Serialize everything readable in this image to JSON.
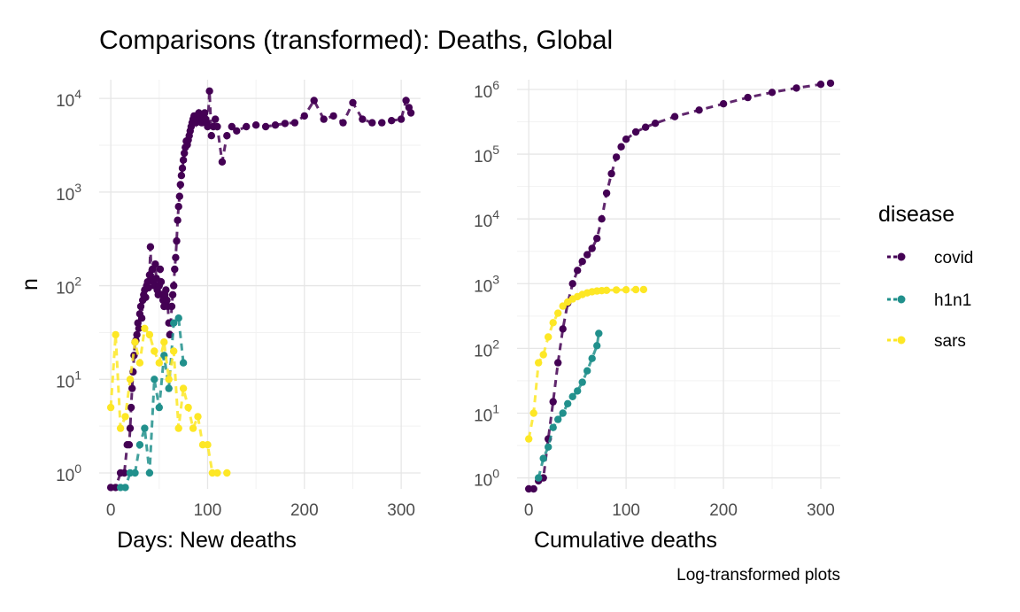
{
  "chart_data": [
    {
      "type": "scatter",
      "xlabel": "Days: New deaths",
      "ylabel": "n",
      "y_scale": "log10",
      "xlim": [
        -12,
        320
      ],
      "ylim_log10": [
        -0.17,
        4.2
      ],
      "x_ticks": [
        "0",
        "100",
        "200",
        "300"
      ],
      "y_ticks": [
        {
          "base": "10",
          "exp": "0"
        },
        {
          "base": "10",
          "exp": "1"
        },
        {
          "base": "10",
          "exp": "2"
        },
        {
          "base": "10",
          "exp": "3"
        },
        {
          "base": "10",
          "exp": "4"
        }
      ],
      "grid": true,
      "series": [
        {
          "name": "covid",
          "x": [
            0,
            5,
            10,
            14,
            17,
            19,
            20,
            21,
            22,
            23,
            24,
            25,
            26,
            27,
            28,
            29,
            30,
            31,
            32,
            33,
            34,
            35,
            36,
            37,
            38,
            39,
            40,
            41,
            42,
            43,
            44,
            45,
            46,
            47,
            48,
            49,
            50,
            51,
            52,
            53,
            54,
            55,
            56,
            57,
            58,
            59,
            60,
            61,
            62,
            63,
            64,
            65,
            66,
            67,
            68,
            69,
            70,
            71,
            72,
            73,
            74,
            75,
            76,
            77,
            78,
            79,
            80,
            81,
            82,
            83,
            84,
            85,
            86,
            87,
            88,
            89,
            90,
            91,
            92,
            93,
            94,
            95,
            96,
            97,
            98,
            99,
            100,
            102,
            104,
            106,
            108,
            110,
            115,
            120,
            125,
            130,
            140,
            150,
            160,
            170,
            180,
            190,
            200,
            210,
            220,
            230,
            240,
            250,
            260,
            270,
            280,
            290,
            300,
            305,
            308,
            310
          ],
          "y": [
            0.7,
            0.7,
            1,
            1,
            2,
            2,
            3,
            5,
            8,
            12,
            18,
            25,
            26,
            30,
            40,
            35,
            50,
            60,
            45,
            70,
            80,
            90,
            75,
            100,
            110,
            95,
            130,
            260,
            120,
            150,
            110,
            100,
            170,
            120,
            90,
            80,
            100,
            150,
            110,
            80,
            70,
            60,
            80,
            90,
            70,
            60,
            40,
            30,
            40,
            60,
            80,
            100,
            150,
            200,
            300,
            500,
            700,
            900,
            1200,
            1500,
            1800,
            2200,
            2600,
            3000,
            3500,
            3200,
            3600,
            4000,
            4500,
            5000,
            5500,
            6000,
            6500,
            6000,
            5500,
            6000,
            6500,
            7000,
            6500,
            6000,
            5500,
            6000,
            6500,
            7000,
            6000,
            5500,
            5000,
            12000,
            4000,
            5000,
            6000,
            5000,
            2100,
            4000,
            5000,
            4500,
            5000,
            5200,
            5000,
            5200,
            5400,
            5500,
            6500,
            9500,
            6000,
            6500,
            5500,
            9000,
            6000,
            5500,
            5500,
            5800,
            6000,
            9500,
            8000,
            7000
          ]
        },
        {
          "name": "h1n1",
          "x": [
            10,
            15,
            20,
            25,
            30,
            35,
            40,
            45,
            50,
            55,
            60,
            65,
            70,
            75
          ],
          "y": [
            0.7,
            0.7,
            1,
            1,
            2,
            3,
            1,
            10,
            5,
            18,
            8,
            40,
            45,
            15
          ]
        },
        {
          "name": "sars",
          "x": [
            0,
            5,
            10,
            15,
            20,
            25,
            30,
            35,
            40,
            45,
            50,
            55,
            60,
            65,
            70,
            75,
            80,
            85,
            90,
            95,
            100,
            105,
            110,
            120
          ],
          "y": [
            5,
            30,
            3,
            4,
            10,
            25,
            15,
            35,
            30,
            20,
            15,
            25,
            10,
            20,
            3,
            8,
            5,
            3,
            4,
            2,
            2,
            1,
            1,
            1
          ]
        }
      ]
    },
    {
      "type": "scatter",
      "xlabel": "Cumulative deaths",
      "y_scale": "log10",
      "xlim": [
        -12,
        320
      ],
      "ylim_log10": [
        -0.17,
        6.15
      ],
      "x_ticks": [
        "0",
        "100",
        "200",
        "300"
      ],
      "y_ticks": [
        {
          "base": "10",
          "exp": "0"
        },
        {
          "base": "10",
          "exp": "1"
        },
        {
          "base": "10",
          "exp": "2"
        },
        {
          "base": "10",
          "exp": "3"
        },
        {
          "base": "10",
          "exp": "4"
        },
        {
          "base": "10",
          "exp": "5"
        },
        {
          "base": "10",
          "exp": "6"
        }
      ],
      "grid": true,
      "series": [
        {
          "name": "covid",
          "x": [
            0,
            5,
            10,
            15,
            20,
            25,
            30,
            35,
            40,
            45,
            50,
            55,
            60,
            65,
            70,
            75,
            80,
            85,
            90,
            95,
            100,
            110,
            120,
            130,
            150,
            175,
            200,
            225,
            250,
            275,
            300,
            310
          ],
          "y": [
            0.6,
            0.6,
            0.9,
            1,
            4,
            15,
            60,
            200,
            500,
            1000,
            1600,
            2200,
            2800,
            3500,
            5000,
            10000,
            25000,
            50000,
            90000,
            130000,
            170000,
            220000,
            260000,
            300000,
            380000,
            480000,
            600000,
            750000,
            900000,
            1050000,
            1200000,
            1250000
          ]
        },
        {
          "name": "h1n1",
          "x": [
            10,
            15,
            20,
            25,
            30,
            35,
            40,
            45,
            50,
            55,
            60,
            65,
            70,
            72
          ],
          "y": [
            1,
            2,
            3,
            6,
            8,
            10,
            14,
            18,
            22,
            30,
            45,
            70,
            110,
            170
          ]
        },
        {
          "name": "sars",
          "x": [
            0,
            5,
            10,
            15,
            20,
            25,
            30,
            35,
            40,
            45,
            50,
            55,
            60,
            65,
            70,
            75,
            80,
            90,
            100,
            110,
            118
          ],
          "y": [
            4,
            10,
            60,
            80,
            150,
            250,
            350,
            450,
            520,
            580,
            630,
            680,
            720,
            750,
            770,
            780,
            790,
            800,
            805,
            810,
            812
          ]
        }
      ]
    }
  ],
  "title": "Comparisons (transformed): Deaths, Global",
  "legend": {
    "title": "disease",
    "placement": "right",
    "items": [
      {
        "label": "covid",
        "color": "#440154"
      },
      {
        "label": "h1n1",
        "color": "#21908C"
      },
      {
        "label": "sars",
        "color": "#FDE725"
      }
    ]
  },
  "caption": "Log-transformed plots"
}
